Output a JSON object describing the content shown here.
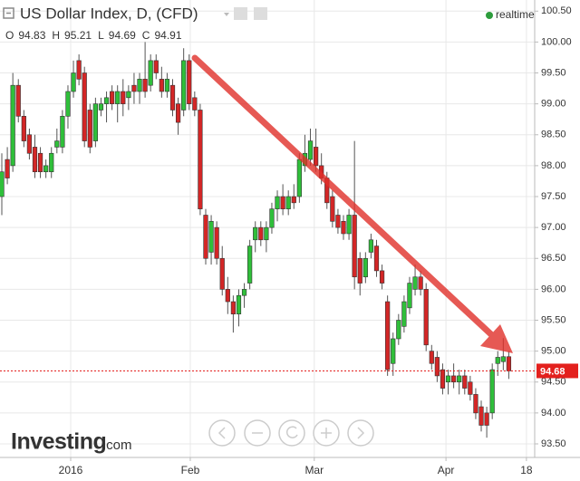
{
  "header": {
    "title": "US Dollar Index, D, (CFD)",
    "status": "realtime",
    "ohlc": [
      {
        "label": "O",
        "value": 94.83
      },
      {
        "label": "H",
        "value": 95.21
      },
      {
        "label": "L",
        "value": 94.69
      },
      {
        "label": "C",
        "value": 94.91
      }
    ]
  },
  "logo": {
    "brand": "Investing",
    "suffix": ".com"
  },
  "chart_data": {
    "type": "candlestick",
    "ohlc": [
      [
        97.5,
        98.2,
        97.2,
        97.9
      ],
      [
        98.1,
        98.3,
        97.7,
        97.8
      ],
      [
        98.0,
        99.5,
        97.9,
        99.3
      ],
      [
        99.3,
        99.4,
        98.7,
        98.8
      ],
      [
        98.8,
        98.9,
        98.3,
        98.4
      ],
      [
        98.5,
        98.6,
        98.1,
        98.2
      ],
      [
        98.3,
        98.5,
        97.8,
        97.9
      ],
      [
        98.2,
        98.3,
        97.8,
        97.9
      ],
      [
        97.9,
        98.1,
        97.8,
        98.0
      ],
      [
        97.9,
        98.3,
        97.8,
        98.2
      ],
      [
        98.3,
        98.6,
        98.2,
        98.4
      ],
      [
        98.3,
        98.9,
        98.2,
        98.8
      ],
      [
        98.8,
        99.3,
        98.6,
        99.2
      ],
      [
        99.2,
        99.7,
        99.1,
        99.5
      ],
      [
        99.7,
        99.8,
        99.3,
        99.4
      ],
      [
        99.5,
        99.6,
        98.3,
        98.4
      ],
      [
        98.9,
        99.0,
        98.2,
        98.3
      ],
      [
        98.4,
        99.1,
        98.3,
        99.0
      ],
      [
        98.9,
        99.1,
        98.8,
        99.0
      ],
      [
        99.0,
        99.2,
        98.7,
        99.1
      ],
      [
        99.2,
        99.3,
        98.9,
        99.0
      ],
      [
        99.0,
        99.3,
        98.7,
        99.2
      ],
      [
        99.2,
        99.4,
        98.8,
        99.0
      ],
      [
        99.1,
        99.3,
        98.9,
        99.2
      ],
      [
        99.3,
        99.5,
        99.0,
        99.2
      ],
      [
        99.2,
        99.5,
        99.0,
        99.4
      ],
      [
        99.4,
        100.0,
        99.1,
        99.2
      ],
      [
        99.3,
        99.8,
        99.2,
        99.7
      ],
      [
        99.7,
        99.8,
        99.4,
        99.5
      ],
      [
        99.4,
        99.6,
        99.1,
        99.2
      ],
      [
        99.2,
        99.5,
        99.1,
        99.4
      ],
      [
        99.3,
        99.4,
        98.8,
        98.9
      ],
      [
        99.0,
        99.1,
        98.5,
        98.7
      ],
      [
        98.9,
        99.9,
        98.8,
        99.7
      ],
      [
        99.7,
        99.8,
        98.9,
        99.0
      ],
      [
        99.1,
        99.2,
        98.8,
        98.9
      ],
      [
        98.9,
        99.0,
        97.2,
        97.3
      ],
      [
        97.2,
        97.3,
        96.4,
        96.5
      ],
      [
        96.6,
        97.2,
        96.4,
        97.1
      ],
      [
        97.0,
        97.1,
        96.4,
        96.5
      ],
      [
        96.5,
        96.7,
        95.9,
        96.0
      ],
      [
        96.0,
        96.2,
        95.6,
        95.8
      ],
      [
        95.8,
        95.9,
        95.3,
        95.6
      ],
      [
        95.6,
        96.0,
        95.4,
        95.9
      ],
      [
        95.9,
        96.1,
        95.7,
        96.0
      ],
      [
        96.1,
        96.8,
        96.0,
        96.7
      ],
      [
        96.8,
        97.1,
        96.6,
        97.0
      ],
      [
        97.0,
        97.1,
        96.7,
        96.8
      ],
      [
        96.8,
        97.1,
        96.6,
        97.0
      ],
      [
        97.0,
        97.4,
        96.9,
        97.3
      ],
      [
        97.3,
        97.6,
        97.1,
        97.5
      ],
      [
        97.5,
        97.7,
        97.2,
        97.3
      ],
      [
        97.3,
        97.6,
        97.2,
        97.5
      ],
      [
        97.5,
        97.7,
        97.3,
        97.4
      ],
      [
        97.5,
        98.2,
        97.4,
        98.1
      ],
      [
        98.0,
        98.5,
        97.9,
        98.2
      ],
      [
        98.1,
        98.6,
        98.0,
        98.4
      ],
      [
        98.3,
        98.6,
        97.9,
        98.0
      ],
      [
        98.0,
        98.2,
        97.7,
        97.8
      ],
      [
        97.8,
        97.9,
        97.3,
        97.4
      ],
      [
        97.5,
        97.6,
        97.0,
        97.1
      ],
      [
        97.2,
        97.3,
        96.9,
        97.0
      ],
      [
        97.1,
        97.2,
        96.8,
        96.9
      ],
      [
        96.9,
        97.3,
        96.8,
        97.2
      ],
      [
        97.2,
        98.4,
        96.0,
        96.2
      ],
      [
        96.5,
        96.6,
        95.9,
        96.1
      ],
      [
        96.2,
        96.6,
        96.1,
        96.5
      ],
      [
        96.6,
        96.9,
        96.5,
        96.8
      ],
      [
        96.7,
        96.8,
        96.2,
        96.3
      ],
      [
        96.3,
        96.4,
        96.0,
        96.1
      ],
      [
        95.8,
        95.9,
        94.6,
        94.7
      ],
      [
        94.8,
        95.3,
        94.6,
        95.2
      ],
      [
        95.2,
        95.6,
        95.1,
        95.5
      ],
      [
        95.4,
        95.9,
        95.3,
        95.8
      ],
      [
        95.7,
        96.2,
        95.6,
        96.1
      ],
      [
        96.0,
        96.4,
        95.9,
        96.2
      ],
      [
        96.2,
        96.3,
        95.9,
        96.0
      ],
      [
        96.0,
        96.1,
        95.0,
        95.1
      ],
      [
        95.0,
        95.1,
        94.7,
        94.8
      ],
      [
        94.9,
        95.0,
        94.5,
        94.6
      ],
      [
        94.7,
        94.8,
        94.3,
        94.4
      ],
      [
        94.5,
        94.7,
        94.3,
        94.6
      ],
      [
        94.6,
        94.8,
        94.4,
        94.5
      ],
      [
        94.5,
        94.7,
        94.3,
        94.6
      ],
      [
        94.6,
        94.7,
        94.3,
        94.4
      ],
      [
        94.5,
        94.6,
        94.2,
        94.3
      ],
      [
        94.3,
        94.4,
        93.9,
        94.0
      ],
      [
        94.1,
        94.2,
        93.7,
        93.8
      ],
      [
        94.0,
        94.1,
        93.6,
        93.8
      ],
      [
        94.0,
        94.8,
        93.9,
        94.7
      ],
      [
        94.8,
        95.0,
        94.6,
        94.9
      ],
      [
        94.83,
        95.21,
        94.69,
        94.91
      ],
      [
        94.91,
        95.0,
        94.55,
        94.68
      ]
    ],
    "up_color": "#2fbf3a",
    "down_color": "#d32626",
    "xlim": [
      -0.33,
      96.7
    ],
    "xticks": [
      {
        "value": 12.5,
        "label": "2016"
      },
      {
        "value": 34.2,
        "label": "Feb"
      },
      {
        "value": 56.7,
        "label": "Mar"
      },
      {
        "value": 80.6,
        "label": "Apr"
      },
      {
        "value": 95.2,
        "label": "18"
      }
    ],
    "ylim": [
      93.28,
      100.68
    ],
    "yticks": [
      {
        "value": 93.5,
        "label": "93.50"
      },
      {
        "value": 94,
        "label": "94.00"
      },
      {
        "value": 94.5,
        "label": "94.50"
      },
      {
        "value": 95,
        "label": "95.00"
      },
      {
        "value": 95.5,
        "label": "95.50"
      },
      {
        "value": 96,
        "label": "96.00"
      },
      {
        "value": 96.5,
        "label": "96.50"
      },
      {
        "value": 97,
        "label": "97.00"
      },
      {
        "value": 97.5,
        "label": "97.50"
      },
      {
        "value": 98,
        "label": "98.00"
      },
      {
        "value": 98.5,
        "label": "98.50"
      },
      {
        "value": 99,
        "label": "99.00"
      },
      {
        "value": 99.5,
        "label": "99.50"
      },
      {
        "value": 100,
        "label": "100.00"
      },
      {
        "value": 100.5,
        "label": "100.50"
      }
    ],
    "grid": true,
    "last_price": 94.68,
    "last_price_color": "#e3201d"
  }
}
